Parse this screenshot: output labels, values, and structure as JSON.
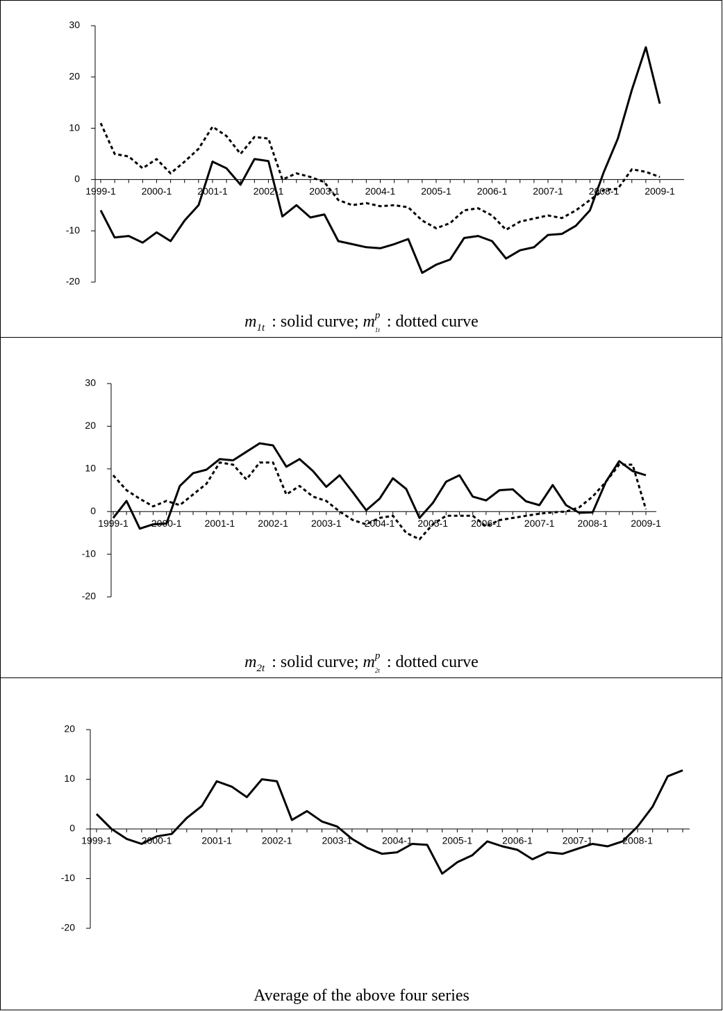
{
  "chart_data": [
    {
      "type": "line",
      "caption": [
        {
          "text": "m",
          "role": "base"
        },
        {
          "text": "1t",
          "role": "sub"
        },
        {
          "text": " : solid curve;  ",
          "role": "plain"
        },
        {
          "text": "m",
          "role": "base"
        },
        {
          "text": "p",
          "role": "sup"
        },
        {
          "text": "1t",
          "role": "sub"
        },
        {
          "text": " : dotted curve",
          "role": "plain"
        }
      ],
      "categories": [
        "1999-1",
        null,
        null,
        null,
        "2000-1",
        null,
        null,
        null,
        "2001-1",
        null,
        null,
        null,
        "2002-1",
        null,
        null,
        null,
        "2003-1",
        null,
        null,
        null,
        "2004-1",
        null,
        null,
        null,
        "2005-1",
        null,
        null,
        null,
        "2006-1",
        null,
        null,
        null,
        "2007-1",
        null,
        null,
        null,
        "2008-1",
        null,
        null,
        null,
        "2009-1"
      ],
      "ylim": [
        -20,
        30
      ],
      "yticks": [
        -20,
        -10,
        0,
        10,
        20,
        30
      ],
      "series": [
        {
          "color": "#000000",
          "dash": "solid",
          "values": [
            -6,
            -11.3,
            -11,
            -12.3,
            -10.3,
            -12,
            -8,
            -5,
            3.5,
            2.2,
            -1,
            4,
            3.6,
            -7.2,
            -5,
            -7.4,
            -6.8,
            -12,
            -12.6,
            -13.2,
            -13.4,
            -12.6,
            -11.6,
            -18.2,
            -16.6,
            -15.6,
            -11.4,
            -11,
            -12,
            -15.4,
            -13.8,
            -13.2,
            -10.8,
            -10.6,
            -9,
            -6,
            1.5,
            8,
            17.5,
            25.8,
            14.8
          ]
        },
        {
          "color": "#000000",
          "dash": "dotted",
          "values": [
            11,
            5,
            4.5,
            2.2,
            4,
            1.2,
            3.5,
            6,
            10.3,
            8.5,
            5,
            8.3,
            8,
            0,
            1.2,
            0.5,
            -0.5,
            -4,
            -5,
            -4.6,
            -5.2,
            -5,
            -5.4,
            -8,
            -9.5,
            -8.5,
            -6,
            -5.6,
            -7,
            -9.8,
            -8.2,
            -7.6,
            -7,
            -7.5,
            -6,
            -4,
            -2,
            -1.8,
            2,
            1.5,
            0.5
          ]
        }
      ]
    },
    {
      "type": "line",
      "caption": [
        {
          "text": "m",
          "role": "base"
        },
        {
          "text": "2t",
          "role": "sub"
        },
        {
          "text": " : solid curve;  ",
          "role": "plain"
        },
        {
          "text": "m",
          "role": "base"
        },
        {
          "text": "p",
          "role": "sup"
        },
        {
          "text": "2t",
          "role": "sub"
        },
        {
          "text": " : dotted curve",
          "role": "plain"
        }
      ],
      "categories": [
        "1999-1",
        null,
        null,
        null,
        "2000-1",
        null,
        null,
        null,
        "2001-1",
        null,
        null,
        null,
        "2002-1",
        null,
        null,
        null,
        "2003-1",
        null,
        null,
        null,
        "2004-1",
        null,
        null,
        null,
        "2005-1",
        null,
        null,
        null,
        "2006-1",
        null,
        null,
        null,
        "2007-1",
        null,
        null,
        null,
        "2008-1",
        null,
        null,
        null,
        "2009-1"
      ],
      "ylim": [
        -20,
        30
      ],
      "yticks": [
        -20,
        -10,
        0,
        10,
        20,
        30
      ],
      "series": [
        {
          "color": "#000000",
          "dash": "solid",
          "values": [
            -1.5,
            2.5,
            -4,
            -3,
            -2.8,
            6,
            9,
            9.8,
            12.3,
            12,
            14,
            16,
            15.5,
            10.5,
            12.3,
            9.5,
            5.8,
            8.5,
            4.5,
            0.3,
            3,
            7.8,
            5.3,
            -1.5,
            2,
            7,
            8.5,
            3.5,
            2.6,
            5,
            5.2,
            2.4,
            1.5,
            6.2,
            1.5,
            -0.3,
            -0.2,
            7,
            11.8,
            9.5,
            8.5
          ]
        },
        {
          "color": "#000000",
          "dash": "dotted",
          "values": [
            8.5,
            5,
            3,
            1.2,
            2.5,
            1.5,
            4,
            6.5,
            11.5,
            11,
            7.5,
            11.5,
            11.5,
            4,
            6,
            3.5,
            2.5,
            0,
            -2,
            -3,
            -1.5,
            -1,
            -5,
            -6.5,
            -3,
            -1,
            -1,
            -1,
            -3.5,
            -2,
            -1.5,
            -1,
            -0.5,
            -0.2,
            0,
            1,
            3.5,
            7,
            11,
            11,
            0.5
          ]
        }
      ]
    },
    {
      "type": "line",
      "caption": [
        {
          "text": "Average of the above four series",
          "role": "plain"
        }
      ],
      "categories": [
        "1999-1",
        null,
        null,
        null,
        "2000-1",
        null,
        null,
        null,
        "2001-1",
        null,
        null,
        null,
        "2002-1",
        null,
        null,
        null,
        "2003-1",
        null,
        null,
        null,
        "2004-1",
        null,
        null,
        null,
        "2005-1",
        null,
        null,
        null,
        "2006-1",
        null,
        null,
        null,
        "2007-1",
        null,
        null,
        null,
        "2008-1",
        null,
        null,
        null
      ],
      "ylim": [
        -20,
        20
      ],
      "yticks": [
        -20,
        -10,
        0,
        10,
        20
      ],
      "series": [
        {
          "color": "#000000",
          "dash": "solid",
          "values": [
            3,
            0,
            -2,
            -3,
            -1.5,
            -1,
            2.2,
            4.6,
            9.6,
            8.5,
            6.4,
            10,
            9.6,
            1.8,
            3.6,
            1.5,
            0.5,
            -2,
            -3.8,
            -5,
            -4.7,
            -3,
            -3.2,
            -9,
            -6.7,
            -5.3,
            -2.5,
            -3.5,
            -4.2,
            -6.1,
            -4.7,
            -5,
            -4,
            -3,
            -3.5,
            -2.5,
            0.5,
            4.5,
            10.6,
            11.8
          ]
        }
      ]
    }
  ]
}
